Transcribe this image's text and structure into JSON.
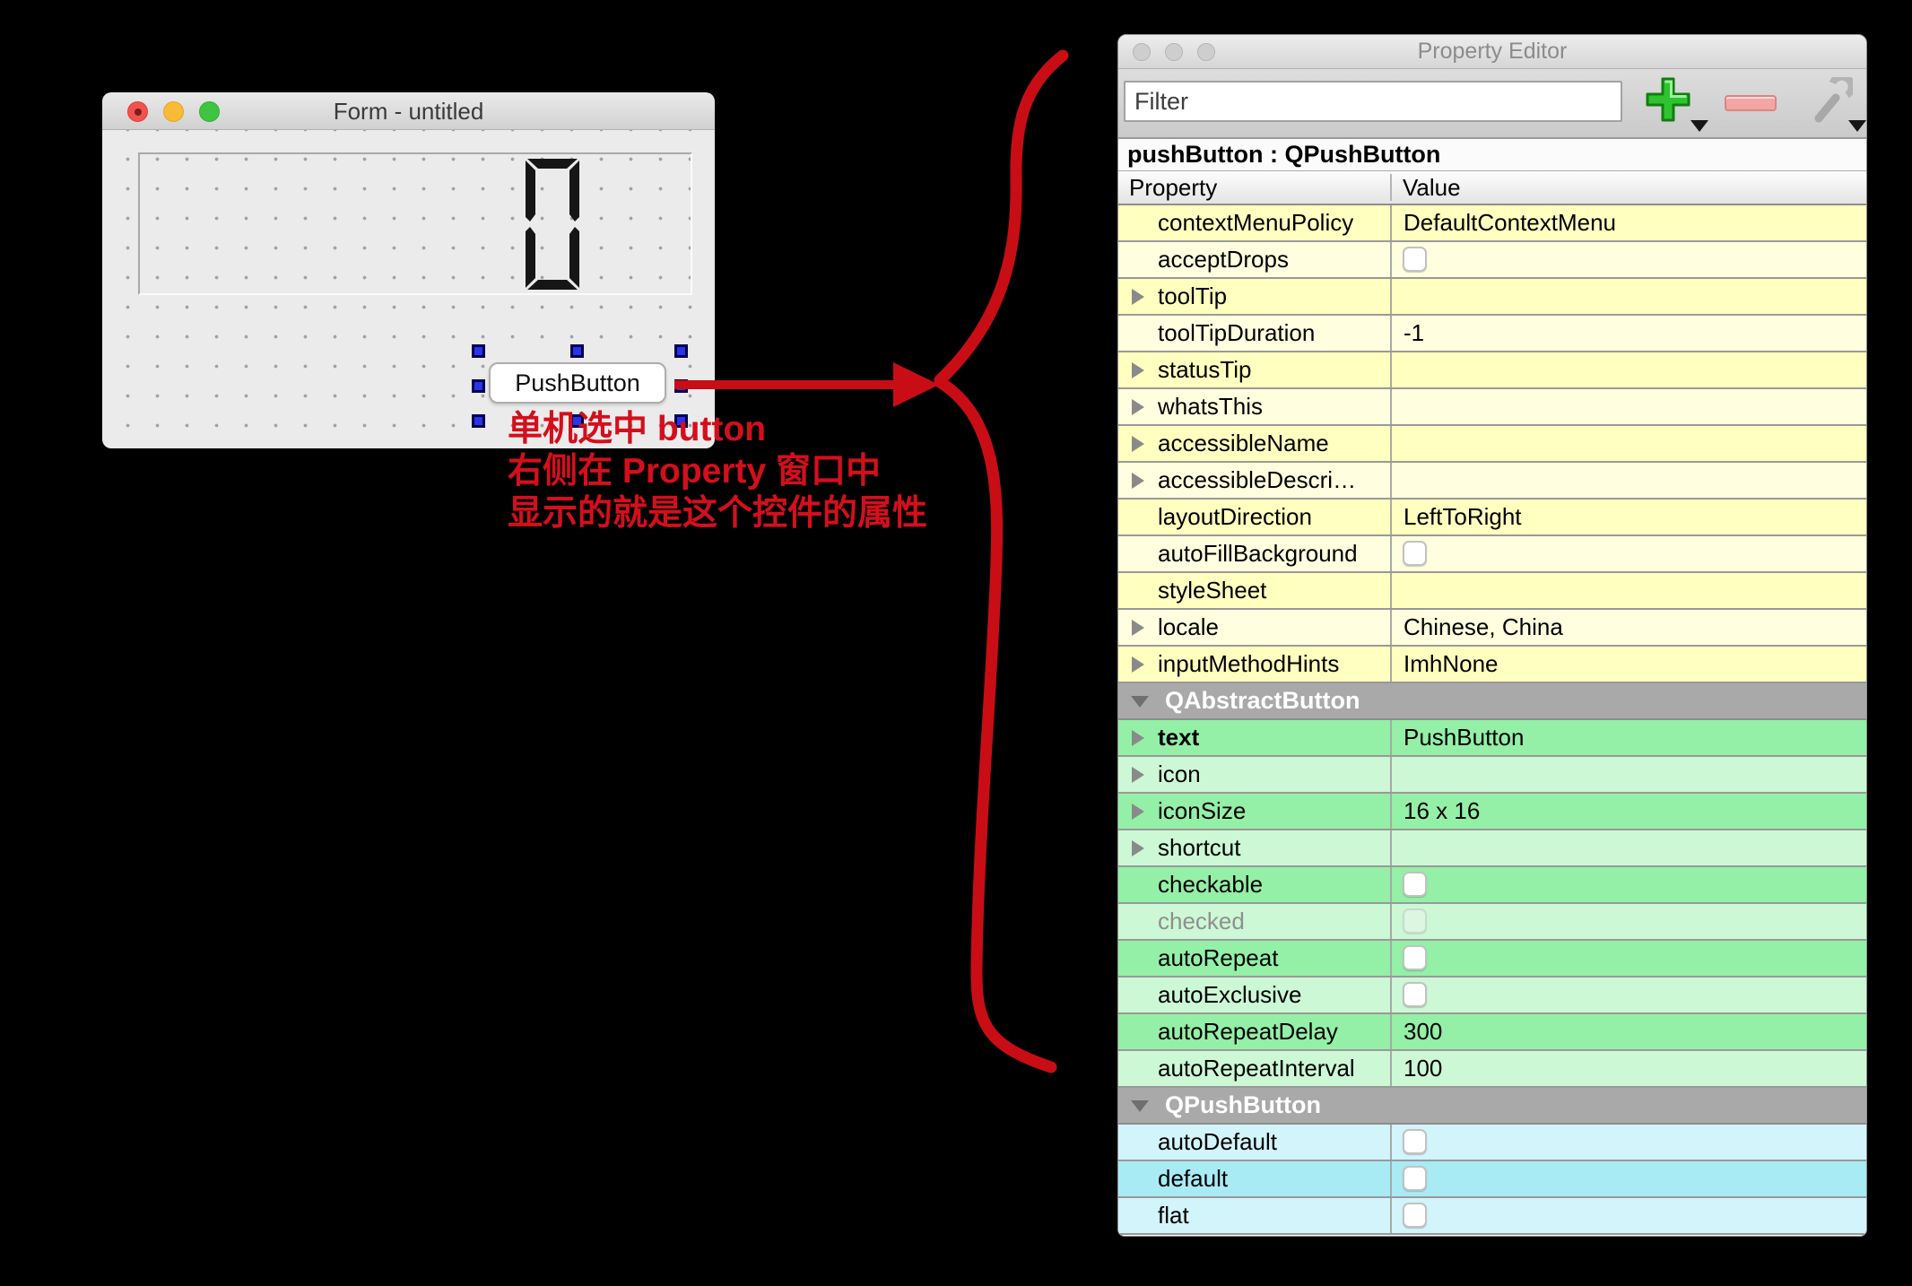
{
  "form_window": {
    "title": "Form - untitled",
    "lcd_value": "0",
    "button_label": "PushButton"
  },
  "annotation": {
    "lines": [
      "单机选中 button",
      "右侧在 Property 窗口中",
      "显示的就是这个控件的属性"
    ]
  },
  "property_editor": {
    "window_title": "Property Editor",
    "filter_placeholder": "Filter",
    "toolbar_icons": [
      "add-icon",
      "remove-icon",
      "configure-wrench-icon"
    ],
    "object_header": "pushButton : QPushButton",
    "columns": [
      "Property",
      "Value"
    ],
    "rows": [
      {
        "kind": "row",
        "palette": "yellow",
        "tone": "bright",
        "name": "contextMenuPolicy",
        "value": "DefaultContextMenu"
      },
      {
        "kind": "row",
        "palette": "yellow",
        "tone": "pale",
        "name": "acceptDrops",
        "checkbox": true,
        "checked": false
      },
      {
        "kind": "row",
        "palette": "yellow",
        "tone": "bright",
        "name": "toolTip",
        "arrow": true,
        "value": ""
      },
      {
        "kind": "row",
        "palette": "yellow",
        "tone": "pale",
        "name": "toolTipDuration",
        "value": "-1"
      },
      {
        "kind": "row",
        "palette": "yellow",
        "tone": "bright",
        "name": "statusTip",
        "arrow": true,
        "value": ""
      },
      {
        "kind": "row",
        "palette": "yellow",
        "tone": "pale",
        "name": "whatsThis",
        "arrow": true,
        "value": ""
      },
      {
        "kind": "row",
        "palette": "yellow",
        "tone": "bright",
        "name": "accessibleName",
        "arrow": true,
        "value": ""
      },
      {
        "kind": "row",
        "palette": "yellow",
        "tone": "pale",
        "name": "accessibleDescri…",
        "arrow": true,
        "value": ""
      },
      {
        "kind": "row",
        "palette": "yellow",
        "tone": "bright",
        "name": "layoutDirection",
        "value": "LeftToRight"
      },
      {
        "kind": "row",
        "palette": "yellow",
        "tone": "pale",
        "name": "autoFillBackground",
        "checkbox": true,
        "checked": false
      },
      {
        "kind": "row",
        "palette": "yellow",
        "tone": "bright",
        "name": "styleSheet",
        "value": ""
      },
      {
        "kind": "row",
        "palette": "yellow",
        "tone": "pale",
        "name": "locale",
        "arrow": true,
        "value": "Chinese, China"
      },
      {
        "kind": "row",
        "palette": "yellow",
        "tone": "bright",
        "name": "inputMethodHints",
        "arrow": true,
        "value": "ImhNone"
      },
      {
        "kind": "section",
        "name": "QAbstractButton"
      },
      {
        "kind": "row",
        "palette": "green",
        "tone": "bright",
        "name": "text",
        "arrow": true,
        "bold": true,
        "value": "PushButton"
      },
      {
        "kind": "row",
        "palette": "green",
        "tone": "pale",
        "name": "icon",
        "arrow": true,
        "value": ""
      },
      {
        "kind": "row",
        "palette": "green",
        "tone": "bright",
        "name": "iconSize",
        "arrow": true,
        "value": "16 x 16"
      },
      {
        "kind": "row",
        "palette": "green",
        "tone": "pale",
        "name": "shortcut",
        "arrow": true,
        "value": ""
      },
      {
        "kind": "row",
        "palette": "green",
        "tone": "bright",
        "name": "checkable",
        "checkbox": true,
        "checked": false
      },
      {
        "kind": "row",
        "palette": "green",
        "tone": "pale",
        "name": "checked",
        "checkbox": true,
        "checked": false,
        "disabled": true
      },
      {
        "kind": "row",
        "palette": "green",
        "tone": "bright",
        "name": "autoRepeat",
        "checkbox": true,
        "checked": false
      },
      {
        "kind": "row",
        "palette": "green",
        "tone": "pale",
        "name": "autoExclusive",
        "checkbox": true,
        "checked": false
      },
      {
        "kind": "row",
        "palette": "green",
        "tone": "bright",
        "name": "autoRepeatDelay",
        "value": "300"
      },
      {
        "kind": "row",
        "palette": "green",
        "tone": "pale",
        "name": "autoRepeatInterval",
        "value": "100"
      },
      {
        "kind": "section",
        "name": "QPushButton"
      },
      {
        "kind": "row",
        "palette": "cyan",
        "tone": "pale",
        "name": "autoDefault",
        "checkbox": true,
        "checked": false
      },
      {
        "kind": "row",
        "palette": "cyan",
        "tone": "bright",
        "name": "default",
        "checkbox": true,
        "checked": false
      },
      {
        "kind": "row",
        "palette": "cyan",
        "tone": "pale",
        "name": "flat",
        "checkbox": true,
        "checked": false
      }
    ]
  },
  "colors": {
    "annotation-red": "#d40f1c",
    "arrow-red": "#c90d15",
    "yellow-bright": "#ffffbf",
    "yellow-pale": "#ffffdf",
    "green-bright": "#93f0a6",
    "green-pale": "#ccf8d5",
    "cyan-bright": "#a8ebf5",
    "cyan-pale": "#d2f4fb",
    "section-gray": "#a9a9a9",
    "row-border": "#999999",
    "handle-navy": "#000052",
    "handle-blue": "#2734e8",
    "minus-pink": "#f2a5a5"
  }
}
